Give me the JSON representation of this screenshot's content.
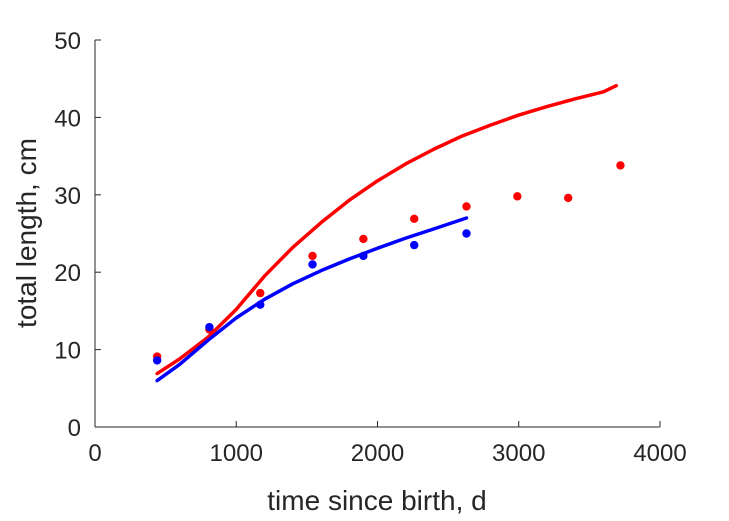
{
  "chart_data": {
    "type": "scatter",
    "title": "",
    "xlabel": "time since birth, d",
    "ylabel": "total length, cm",
    "xlim": [
      0,
      4000
    ],
    "ylim": [
      0,
      50
    ],
    "xticks": [
      0,
      1000,
      2000,
      3000,
      4000
    ],
    "yticks": [
      0,
      10,
      20,
      30,
      40,
      50
    ],
    "grid": false,
    "legend": "none",
    "series": [
      {
        "kind": "points",
        "color": "#ff0000",
        "x": [
          440,
          810,
          1170,
          1540,
          1900,
          2260,
          2630,
          2990,
          3350,
          3720
        ],
        "y": [
          9.1,
          12.6,
          17.3,
          22.1,
          24.3,
          26.9,
          28.5,
          29.8,
          29.6,
          33.8
        ]
      },
      {
        "kind": "points",
        "color": "#0000ff",
        "x": [
          440,
          810,
          1170,
          1540,
          1900,
          2260,
          2630
        ],
        "y": [
          8.6,
          12.9,
          15.8,
          21.0,
          22.1,
          23.5,
          25.0
        ]
      },
      {
        "kind": "line",
        "color": "#ff0000",
        "x": [
          440,
          600,
          800,
          1000,
          1200,
          1400,
          1600,
          1800,
          2000,
          2200,
          2400,
          2600,
          2800,
          3000,
          3200,
          3400,
          3600,
          3690
        ],
        "y": [
          6.9,
          8.8,
          11.6,
          15.2,
          19.5,
          23.2,
          26.4,
          29.3,
          31.8,
          34.0,
          35.9,
          37.6,
          39.0,
          40.3,
          41.4,
          42.4,
          43.3,
          44.1
        ]
      },
      {
        "kind": "line",
        "color": "#0000ff",
        "x": [
          440,
          600,
          800,
          1000,
          1200,
          1400,
          1600,
          1800,
          2000,
          2200,
          2400,
          2630
        ],
        "y": [
          6.0,
          8.1,
          11.2,
          14.1,
          16.5,
          18.5,
          20.2,
          21.7,
          23.1,
          24.4,
          25.6,
          27.0
        ]
      }
    ]
  }
}
